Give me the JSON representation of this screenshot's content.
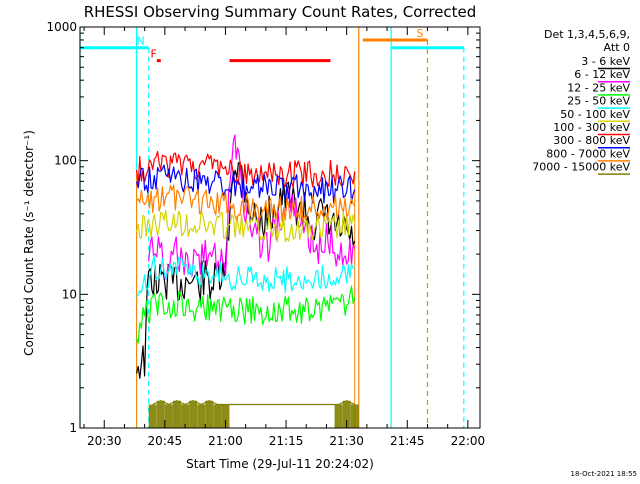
{
  "chart_data": {
    "type": "line",
    "title": "RHESSI Observing Summary Count Rates, Corrected",
    "xlabel": "Start Time (29-Jul-11 20:24:02)",
    "ylabel": "Corrected Count Rate (s⁻¹ detector⁻¹)",
    "y_scale": "log",
    "ylim": [
      1,
      1000
    ],
    "xlim": [
      "20:24",
      "22:03"
    ],
    "x_ticks": [
      "20:30",
      "20:45",
      "21:00",
      "21:15",
      "21:30",
      "21:45",
      "22:00"
    ],
    "y_ticks": [
      "1",
      "10",
      "100",
      "1000"
    ],
    "grid": false,
    "legend_position": "right",
    "legend_header": [
      "Det 1,3,4,5,6,9,",
      "Att 0"
    ],
    "timestamp": "18-Oct-2021 18:55",
    "data_window": [
      "20:38",
      "21:32"
    ],
    "series": [
      {
        "name": "3 - 6 keV",
        "color": "#000000",
        "points": [
          [
            "20:38",
            3
          ],
          [
            "20:40",
            3.2
          ],
          [
            "20:41",
            14
          ],
          [
            "20:43",
            12
          ],
          [
            "20:45",
            13
          ],
          [
            "20:47",
            12
          ],
          [
            "20:49",
            12
          ],
          [
            "20:51",
            13
          ],
          [
            "20:53",
            12
          ],
          [
            "20:55",
            13
          ],
          [
            "20:57",
            12
          ],
          [
            "20:59",
            13
          ],
          [
            "21:00",
            14
          ],
          [
            "21:02",
            100
          ],
          [
            "21:04",
            80
          ],
          [
            "21:06",
            45
          ],
          [
            "21:08",
            35
          ],
          [
            "21:10",
            35
          ],
          [
            "21:12",
            45
          ],
          [
            "21:14",
            55
          ],
          [
            "21:16",
            50
          ],
          [
            "21:18",
            45
          ],
          [
            "21:20",
            40
          ],
          [
            "21:22",
            35
          ],
          [
            "21:24",
            38
          ],
          [
            "21:26",
            33
          ],
          [
            "21:28",
            30
          ],
          [
            "21:30",
            28
          ],
          [
            "21:32",
            25
          ]
        ]
      },
      {
        "name": "6 - 12 keV",
        "color": "#ff00ff",
        "points": [
          [
            "20:41",
            20
          ],
          [
            "20:43",
            22
          ],
          [
            "20:45",
            18
          ],
          [
            "20:47",
            21
          ],
          [
            "20:49",
            19
          ],
          [
            "20:51",
            20
          ],
          [
            "20:53",
            18
          ],
          [
            "20:55",
            19
          ],
          [
            "20:57",
            18
          ],
          [
            "20:59",
            17
          ],
          [
            "21:00",
            19
          ],
          [
            "21:02",
            200
          ],
          [
            "21:03",
            110
          ],
          [
            "21:05",
            45
          ],
          [
            "21:07",
            30
          ],
          [
            "21:09",
            25
          ],
          [
            "21:11",
            23
          ],
          [
            "21:13",
            35
          ],
          [
            "21:15",
            48
          ],
          [
            "21:17",
            40
          ],
          [
            "21:19",
            30
          ],
          [
            "21:21",
            27
          ],
          [
            "21:23",
            24
          ],
          [
            "21:25",
            25
          ],
          [
            "21:27",
            23
          ],
          [
            "21:29",
            23
          ],
          [
            "21:30",
            22
          ],
          [
            "21:32",
            22
          ]
        ]
      },
      {
        "name": "12 - 25 keV",
        "color": "#00ff00",
        "points": [
          [
            "20:38",
            5
          ],
          [
            "20:40",
            7
          ],
          [
            "20:42",
            8
          ],
          [
            "20:44",
            8.5
          ],
          [
            "20:46",
            8.5
          ],
          [
            "20:48",
            8.3
          ],
          [
            "20:50",
            8.2
          ],
          [
            "20:52",
            8.0
          ],
          [
            "20:54",
            8.0
          ],
          [
            "20:56",
            7.8
          ],
          [
            "20:58",
            7.8
          ],
          [
            "21:00",
            7.6
          ],
          [
            "21:02",
            7.7
          ],
          [
            "21:04",
            7.6
          ],
          [
            "21:06",
            7.6
          ],
          [
            "21:08",
            7.5
          ],
          [
            "21:10",
            7.5
          ],
          [
            "21:12",
            7.5
          ],
          [
            "21:14",
            7.6
          ],
          [
            "21:16",
            7.6
          ],
          [
            "21:18",
            7.6
          ],
          [
            "21:20",
            7.8
          ],
          [
            "21:22",
            7.8
          ],
          [
            "21:24",
            7.9
          ],
          [
            "21:26",
            8.0
          ],
          [
            "21:28",
            8.3
          ],
          [
            "21:30",
            8.8
          ],
          [
            "21:32",
            9.5
          ]
        ]
      },
      {
        "name": "25 - 50 keV",
        "color": "#00ffff",
        "points": [
          [
            "20:38",
            10
          ],
          [
            "20:40",
            13
          ],
          [
            "20:42",
            16
          ],
          [
            "20:44",
            16.5
          ],
          [
            "20:46",
            16
          ],
          [
            "20:48",
            15.5
          ],
          [
            "20:50",
            15
          ],
          [
            "20:52",
            14.5
          ],
          [
            "20:54",
            14
          ],
          [
            "20:56",
            14
          ],
          [
            "20:58",
            13.8
          ],
          [
            "21:00",
            13.5
          ],
          [
            "21:02",
            13.3
          ],
          [
            "21:04",
            13.2
          ],
          [
            "21:06",
            13.2
          ],
          [
            "21:08",
            13.1
          ],
          [
            "21:10",
            13.0
          ],
          [
            "21:12",
            13.0
          ],
          [
            "21:14",
            13.0
          ],
          [
            "21:16",
            13.0
          ],
          [
            "21:18",
            13.0
          ],
          [
            "21:20",
            13.1
          ],
          [
            "21:22",
            13.2
          ],
          [
            "21:24",
            13.3
          ],
          [
            "21:26",
            13.5
          ],
          [
            "21:28",
            13.8
          ],
          [
            "21:30",
            14.5
          ],
          [
            "21:32",
            15.5
          ]
        ]
      },
      {
        "name": "50 - 100 keV",
        "color": "#d4d400",
        "points": [
          [
            "20:38",
            30
          ],
          [
            "20:40",
            32
          ],
          [
            "20:42",
            34
          ],
          [
            "20:44",
            35
          ],
          [
            "20:46",
            35
          ],
          [
            "20:48",
            35
          ],
          [
            "20:50",
            34.5
          ],
          [
            "20:52",
            34
          ],
          [
            "20:54",
            34
          ],
          [
            "20:56",
            33.5
          ],
          [
            "20:58",
            33
          ],
          [
            "21:00",
            33
          ],
          [
            "21:02",
            32.5
          ],
          [
            "21:04",
            32
          ],
          [
            "21:06",
            32
          ],
          [
            "21:08",
            31.5
          ],
          [
            "21:10",
            31.5
          ],
          [
            "21:12",
            31
          ],
          [
            "21:14",
            31
          ],
          [
            "21:16",
            31
          ],
          [
            "21:18",
            31
          ],
          [
            "21:20",
            31
          ],
          [
            "21:22",
            31
          ],
          [
            "21:24",
            31
          ],
          [
            "21:26",
            31.5
          ],
          [
            "21:28",
            32
          ],
          [
            "21:30",
            33
          ],
          [
            "21:32",
            34
          ]
        ]
      },
      {
        "name": "100 - 300 keV",
        "color": "#ff0000",
        "points": [
          [
            "20:38",
            85
          ],
          [
            "20:40",
            88
          ],
          [
            "20:42",
            92
          ],
          [
            "20:44",
            94
          ],
          [
            "20:46",
            95
          ],
          [
            "20:48",
            95
          ],
          [
            "20:50",
            94
          ],
          [
            "20:52",
            92
          ],
          [
            "20:54",
            90
          ],
          [
            "20:56",
            88
          ],
          [
            "20:58",
            86
          ],
          [
            "21:00",
            84
          ],
          [
            "21:02",
            83
          ],
          [
            "21:04",
            82
          ],
          [
            "21:06",
            81
          ],
          [
            "21:08",
            80
          ],
          [
            "21:10",
            80
          ],
          [
            "21:12",
            79
          ],
          [
            "21:14",
            79
          ],
          [
            "21:16",
            79
          ],
          [
            "21:18",
            79
          ],
          [
            "21:20",
            79
          ],
          [
            "21:22",
            79
          ],
          [
            "21:24",
            80
          ],
          [
            "21:26",
            80
          ],
          [
            "21:28",
            81
          ],
          [
            "21:30",
            82
          ],
          [
            "21:32",
            83
          ]
        ]
      },
      {
        "name": "300 - 800 keV",
        "color": "#0000ff",
        "points": [
          [
            "20:38",
            68
          ],
          [
            "20:40",
            70
          ],
          [
            "20:42",
            72
          ],
          [
            "20:44",
            73
          ],
          [
            "20:46",
            74
          ],
          [
            "20:48",
            74
          ],
          [
            "20:50",
            73
          ],
          [
            "20:52",
            72
          ],
          [
            "20:54",
            71
          ],
          [
            "20:56",
            70
          ],
          [
            "20:58",
            68
          ],
          [
            "21:00",
            67
          ],
          [
            "21:02",
            66
          ],
          [
            "21:04",
            65
          ],
          [
            "21:06",
            64
          ],
          [
            "21:08",
            63
          ],
          [
            "21:10",
            63
          ],
          [
            "21:12",
            62
          ],
          [
            "21:14",
            62
          ],
          [
            "21:16",
            62
          ],
          [
            "21:18",
            62
          ],
          [
            "21:20",
            61
          ],
          [
            "21:22",
            61
          ],
          [
            "21:24",
            61
          ],
          [
            "21:26",
            61
          ],
          [
            "21:28",
            61
          ],
          [
            "21:30",
            61
          ],
          [
            "21:32",
            61
          ]
        ]
      },
      {
        "name": "800 - 7000 keV",
        "color": "#ff8000",
        "points": [
          [
            "20:38",
            48
          ],
          [
            "20:40",
            50
          ],
          [
            "20:42",
            52
          ],
          [
            "20:44",
            53
          ],
          [
            "20:46",
            53
          ],
          [
            "20:48",
            52.5
          ],
          [
            "20:50",
            52
          ],
          [
            "20:52",
            51
          ],
          [
            "20:54",
            50
          ],
          [
            "20:56",
            49
          ],
          [
            "20:58",
            48
          ],
          [
            "21:00",
            47
          ],
          [
            "21:02",
            46
          ],
          [
            "21:04",
            45.5
          ],
          [
            "21:06",
            45
          ],
          [
            "21:08",
            44.5
          ],
          [
            "21:10",
            44
          ],
          [
            "21:12",
            44
          ],
          [
            "21:14",
            43.5
          ],
          [
            "21:16",
            43.5
          ],
          [
            "21:18",
            43.5
          ],
          [
            "21:20",
            43.5
          ],
          [
            "21:22",
            43.5
          ],
          [
            "21:24",
            44
          ],
          [
            "21:26",
            44
          ],
          [
            "21:28",
            44.5
          ],
          [
            "21:30",
            45
          ],
          [
            "21:32",
            46
          ]
        ]
      },
      {
        "name": "7000 - 15000 keV",
        "color": "#808000",
        "points": [
          [
            "20:42",
            1.5
          ],
          [
            "20:44",
            1.6
          ],
          [
            "20:46",
            1.5
          ],
          [
            "20:48",
            1.6
          ],
          [
            "20:50",
            1.5
          ],
          [
            "20:52",
            1.6
          ],
          [
            "20:54",
            1.5
          ],
          [
            "20:56",
            1.6
          ],
          [
            "20:58",
            1.5
          ],
          [
            "21:00",
            1.5
          ],
          [
            "21:28",
            1.5
          ],
          [
            "21:30",
            1.6
          ],
          [
            "21:32",
            1.5
          ]
        ]
      }
    ],
    "annotations": [
      {
        "label": "N",
        "color": "#00ffff",
        "level": 700,
        "start": "20:24",
        "end": "20:41",
        "end_style": "dashed"
      },
      {
        "label": "S",
        "color": "#ff8000",
        "level": 800,
        "start": "21:34",
        "end": "21:50",
        "end_style": "dashed"
      },
      {
        "label": "",
        "color": "#00ffff",
        "level": 700,
        "start": "21:41",
        "end": "21:59",
        "end_style": "dashed"
      },
      {
        "label": "F",
        "color": "#ff0000",
        "level": 560,
        "start": "20:43",
        "end": "20:44",
        "end_style": "none"
      },
      {
        "label": "",
        "color": "#ff0000",
        "level": 560,
        "start": "21:01",
        "end": "21:26",
        "end_style": "none"
      }
    ],
    "vertical_markers": [
      {
        "time": "20:24",
        "color": "#00ffff",
        "style": "solid"
      },
      {
        "time": "20:38",
        "color": "#00ffff",
        "style": "solid"
      },
      {
        "time": "21:33",
        "color": "#ff8000",
        "style": "solid"
      },
      {
        "time": "21:41",
        "color": "#00ffff",
        "style": "solid"
      }
    ]
  }
}
